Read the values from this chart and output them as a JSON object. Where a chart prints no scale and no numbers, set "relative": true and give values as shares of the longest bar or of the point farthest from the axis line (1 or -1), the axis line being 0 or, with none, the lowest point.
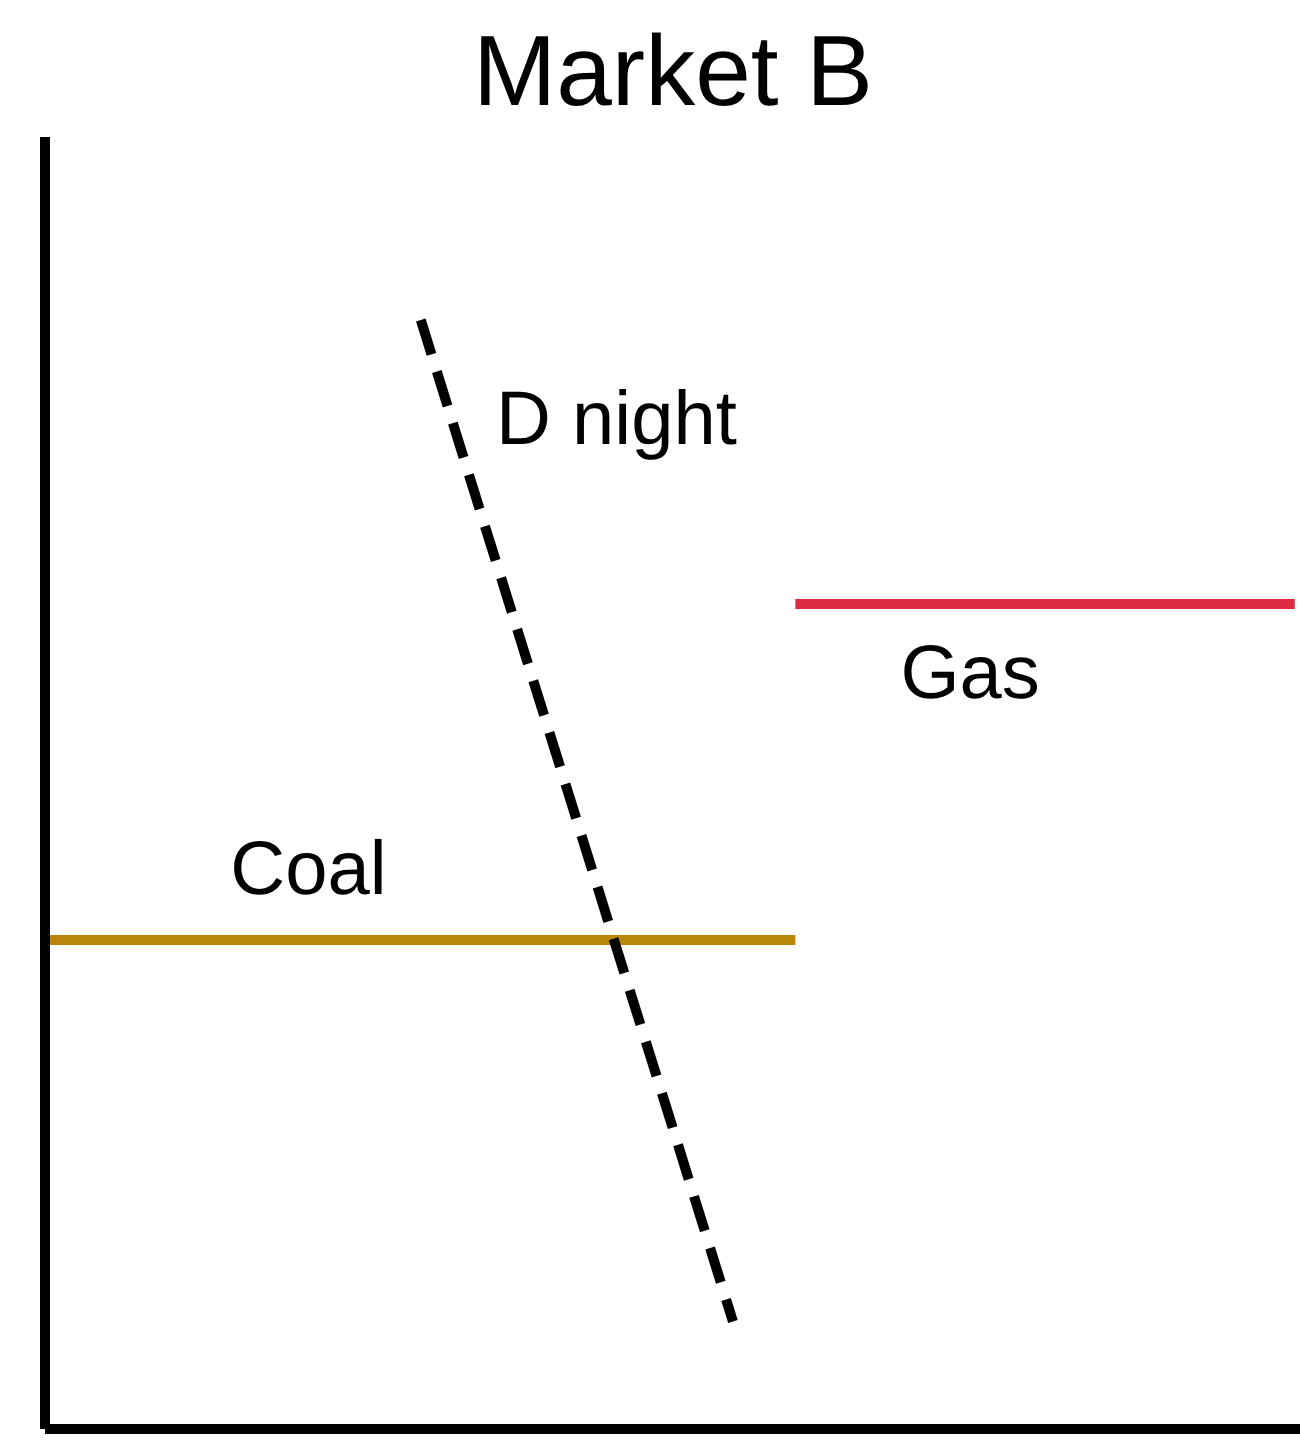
{
  "chart_data": {
    "type": "line",
    "title": "Market B",
    "relative": true,
    "grid": false,
    "categories": [
      null,
      null,
      null,
      null,
      null,
      null,
      null,
      null,
      null,
      null,
      null,
      null,
      null,
      null,
      null,
      null,
      null,
      null,
      null,
      null,
      null
    ],
    "series": [
      {
        "name": "Coal",
        "color": "#b8860b",
        "values": [
          0.441,
          0.441,
          0.441,
          0.441,
          0.441,
          0.441,
          0.441,
          0.441,
          0.441,
          0.441,
          0.441,
          0.441,
          0.441,
          null,
          null,
          null,
          null,
          null,
          null,
          null,
          null
        ]
      },
      {
        "name": "Gas",
        "color": "#dc2a40",
        "values": [
          null,
          null,
          null,
          null,
          null,
          null,
          null,
          null,
          null,
          null,
          null,
          null,
          0.744,
          0.744,
          0.744,
          0.744,
          0.744,
          0.744,
          0.744,
          0.744,
          0.744
        ]
      },
      {
        "name": "D night",
        "color": "#000000",
        "line_style": "dashed",
        "values": [
          null,
          null,
          null,
          null,
          null,
          null,
          1.0,
          0.819,
          0.639,
          0.458,
          0.278,
          0.097,
          null,
          null,
          null,
          null,
          null,
          null,
          null,
          null,
          null
        ]
      }
    ]
  }
}
